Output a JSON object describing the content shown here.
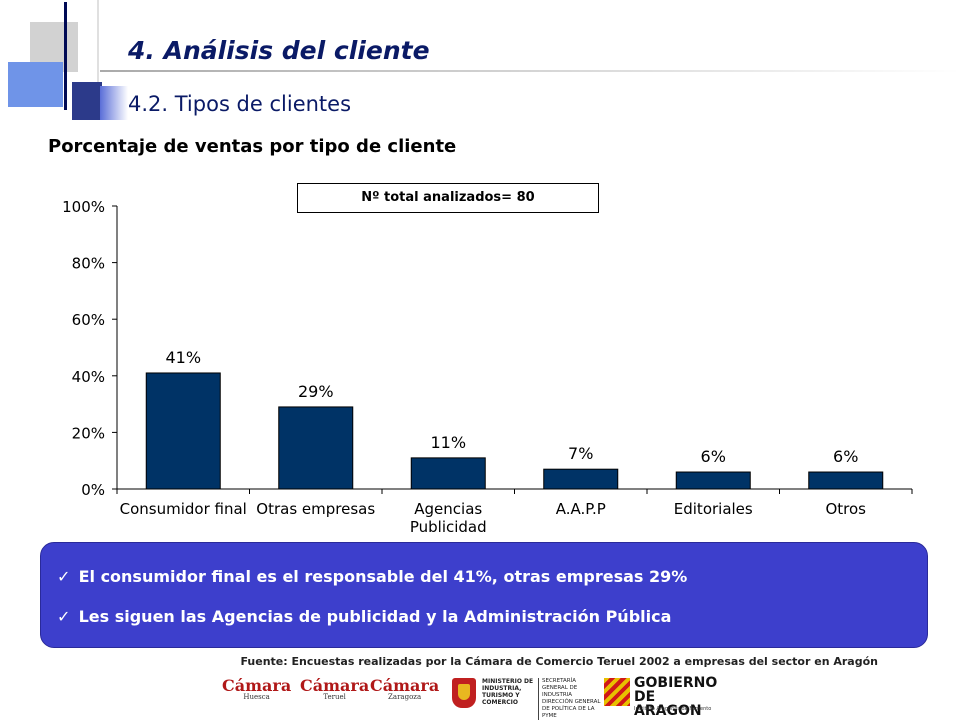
{
  "header": {
    "title": "4. Análisis del cliente",
    "subtitle": "4.2. Tipos de clientes"
  },
  "chart_heading": "Porcentaje de ventas por tipo de cliente",
  "total_label": "Nº total analizados= 80",
  "chart_data": {
    "type": "bar",
    "categories": [
      "Consumidor final",
      "Otras empresas",
      "Agencias Publicidad",
      "A.A.P.P",
      "Editoriales",
      "Otros"
    ],
    "category_lines": [
      [
        "Consumidor final"
      ],
      [
        "Otras empresas"
      ],
      [
        "Agencias",
        "Publicidad"
      ],
      [
        "A.A.P.P"
      ],
      [
        "Editoriales"
      ],
      [
        "Otros"
      ]
    ],
    "values": [
      41,
      29,
      11,
      7,
      6,
      6
    ],
    "data_labels": [
      "41%",
      "29%",
      "11%",
      "7%",
      "6%",
      "6%"
    ],
    "ylim": [
      0,
      100
    ],
    "yticks": [
      0,
      20,
      40,
      60,
      80,
      100
    ],
    "ytick_labels": [
      "0%",
      "20%",
      "40%",
      "60%",
      "80%",
      "100%"
    ],
    "bar_color": "#003366",
    "grid": false
  },
  "summary": {
    "items": [
      "El consumidor final es el responsable del 41%, otras empresas 29%",
      "Les siguen las Agencias de publicidad y la Administración Pública"
    ],
    "check_symbol": "✓",
    "background": "#3d3fcc"
  },
  "source": "Fuente: Encuestas realizadas por  la Cámara de Comercio Teruel 2002 a empresas del sector en Aragón",
  "logos": {
    "camara_1": {
      "name": "Cámara",
      "city": "Huesca"
    },
    "camara_2": {
      "name": "Cámara",
      "city": "Teruel"
    },
    "camara_3": {
      "name": "Cámara",
      "city": "Zaragoza"
    },
    "ministerio": {
      "line1": "MINISTERIO DE INDUSTRIA, TURISMO Y COMERCIO",
      "line2": "SECRETARÍA GENERAL DE INDUSTRIA DIRECCIÓN GENERAL DE POLÍTICA DE LA PYME"
    },
    "aragon": {
      "line1": "GOBIERNO",
      "line2": "DE ARAGON",
      "sub": "Instituto Aragonés de Fomento"
    }
  }
}
